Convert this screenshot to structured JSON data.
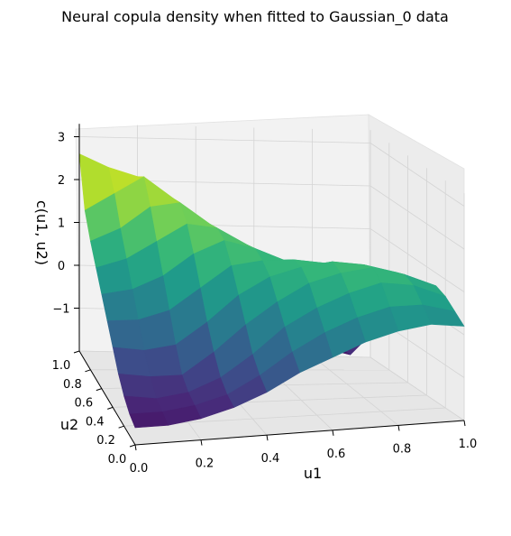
{
  "chart_data": {
    "type": "surface",
    "title": "Neural copula density when fitted to Gaussian_0 data",
    "xlabel": "u1",
    "ylabel": "u2",
    "zlabel": "c(u1, u2)",
    "xlim": [
      0,
      1
    ],
    "ylim": [
      0,
      1
    ],
    "zlim": [
      -2,
      3.2
    ],
    "x_ticks": [
      "0.0",
      "0.2",
      "0.4",
      "0.6",
      "0.8",
      "1.0"
    ],
    "y_ticks": [
      "0.0",
      "0.2",
      "0.4",
      "0.6",
      "0.8",
      "1.0"
    ],
    "z_ticks": [
      "3",
      "2",
      "1",
      "0",
      "−1"
    ],
    "x_tick_values": [
      0,
      0.2,
      0.4,
      0.6,
      0.8,
      1.0
    ],
    "y_tick_values": [
      0,
      0.2,
      0.4,
      0.6,
      0.8,
      1.0
    ],
    "z_tick_values": [
      3,
      2,
      1,
      0,
      -1
    ],
    "grid": true,
    "colormap": "viridis",
    "view": {
      "elev": 15,
      "azim": -75
    },
    "surface_grid": {
      "u1": [
        0.0,
        0.1,
        0.2,
        0.3,
        0.4,
        0.5,
        0.6,
        0.7,
        0.8,
        0.9,
        1.0
      ],
      "u2": [
        0.0,
        0.1,
        0.2,
        0.3,
        0.4,
        0.5,
        0.6,
        0.7,
        0.8,
        0.9,
        1.0
      ],
      "z": [
        [
          -1.6,
          -1.5,
          -1.3,
          -1.0,
          -0.6,
          -0.2,
          0.2,
          0.6,
          1.0,
          1.5,
          2.6
        ],
        [
          -1.6,
          -1.5,
          -1.4,
          -1.1,
          -0.7,
          -0.2,
          0.3,
          0.8,
          1.3,
          1.9,
          2.3
        ],
        [
          -1.5,
          -1.4,
          -1.3,
          -1.1,
          -0.6,
          0.0,
          0.6,
          1.2,
          1.8,
          2.3,
          2.1
        ],
        [
          -1.3,
          -1.2,
          -1.0,
          -0.6,
          -0.1,
          0.5,
          1.1,
          1.6,
          1.9,
          1.8,
          1.6
        ],
        [
          -1.0,
          -0.8,
          -0.5,
          0.0,
          0.5,
          1.0,
          1.4,
          1.5,
          1.4,
          1.2,
          1.0
        ],
        [
          -0.6,
          -0.3,
          0.1,
          0.5,
          0.9,
          1.1,
          1.2,
          1.1,
          0.9,
          0.7,
          0.5
        ],
        [
          -0.3,
          0.1,
          0.5,
          0.9,
          1.1,
          1.1,
          0.9,
          0.6,
          0.3,
          0.1,
          0.0
        ],
        [
          0.0,
          0.4,
          0.8,
          1.1,
          1.2,
          1.0,
          0.6,
          0.2,
          -0.2,
          -0.5,
          -0.6
        ],
        [
          0.2,
          0.6,
          1.0,
          1.2,
          1.1,
          0.8,
          0.3,
          -0.3,
          -0.9,
          -1.3,
          -1.5
        ],
        [
          0.3,
          0.6,
          0.9,
          1.0,
          0.9,
          0.6,
          0.1,
          -0.6,
          -1.3,
          -1.8,
          -1.9
        ],
        [
          0.2,
          0.4,
          0.6,
          0.7,
          0.6,
          0.3,
          -0.1,
          -0.6,
          -1.0,
          -1.1,
          -1.0
        ]
      ]
    }
  }
}
